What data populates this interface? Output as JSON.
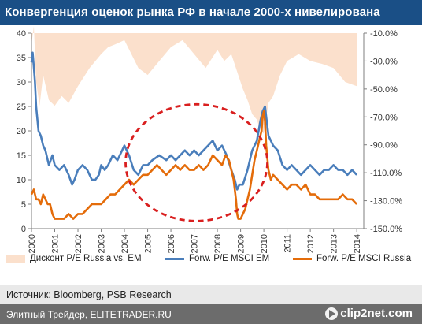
{
  "title": "Конвергенция оценок рынка РФ в начале 2000-х нивелирована",
  "source": "Источник: Bloomberg, PSB Research",
  "footer": {
    "site": "Элитный Трейдер, ELITETRADER.RU",
    "logo": "clip2net.com"
  },
  "colors": {
    "title_bg": "#1a4f86",
    "discount": "#fbe0cc",
    "em": "#4a7ebb",
    "russia": "#e46c0a",
    "circle": "#d91f1f"
  },
  "chart_data": {
    "type": "line",
    "x_ticks": [
      "2000",
      "2001",
      "2002",
      "2003",
      "2004",
      "2005",
      "2006",
      "2007",
      "2008",
      "2009",
      "2010",
      "2011",
      "2012",
      "2013",
      "2014"
    ],
    "y_left": {
      "ticks": [
        "0",
        "5",
        "10",
        "15",
        "20",
        "25",
        "30",
        "35",
        "40"
      ],
      "range": [
        0,
        40
      ]
    },
    "y_right": {
      "ticks": [
        "-150.0%",
        "-130.0%",
        "-110.0%",
        "-90.0%",
        "-70.0%",
        "-50.0%",
        "-30.0%",
        "-10.0%"
      ],
      "range": [
        -150,
        -10
      ]
    },
    "series": [
      {
        "name": "Дисконт P/E Russia vs. EM",
        "axis": "right",
        "kind": "area",
        "x": [
          2000.0,
          2000.1,
          2000.2,
          2000.35,
          2000.5,
          2000.75,
          2001.0,
          2001.3,
          2001.6,
          2002.0,
          2002.5,
          2003.0,
          2003.3,
          2003.6,
          2004.0,
          2004.3,
          2004.6,
          2005.0,
          2005.5,
          2006.0,
          2006.5,
          2007.0,
          2007.5,
          2008.0,
          2008.3,
          2008.6,
          2008.9,
          2009.1,
          2009.3,
          2009.5,
          2009.7,
          2009.85,
          2010.0,
          2010.2,
          2010.4,
          2010.7,
          2011.0,
          2011.5,
          2012.0,
          2012.5,
          2013.0,
          2013.5,
          2014.0
        ],
        "values": [
          -18,
          -5,
          -45,
          -62,
          -40,
          -58,
          -62,
          -55,
          -60,
          -48,
          -35,
          -25,
          -20,
          -18,
          -15,
          -25,
          -35,
          -40,
          -30,
          -20,
          -15,
          -25,
          -35,
          -22,
          -30,
          -25,
          -40,
          -50,
          -58,
          -68,
          -72,
          -80,
          -82,
          -60,
          -55,
          -40,
          -30,
          -25,
          -30,
          -32,
          -35,
          -45,
          -48
        ]
      },
      {
        "name": "Forw. P/E MSCI EM",
        "axis": "left",
        "x": [
          2000.0,
          2000.05,
          2000.1,
          2000.15,
          2000.2,
          2000.3,
          2000.4,
          2000.5,
          2000.6,
          2000.75,
          2000.9,
          2001.0,
          2001.2,
          2001.4,
          2001.6,
          2001.75,
          2001.85,
          2002.0,
          2002.2,
          2002.4,
          2002.6,
          2002.75,
          2002.9,
          2003.0,
          2003.15,
          2003.3,
          2003.5,
          2003.7,
          2003.9,
          2004.0,
          2004.2,
          2004.4,
          2004.6,
          2004.8,
          2005.0,
          2005.2,
          2005.5,
          2005.8,
          2006.0,
          2006.2,
          2006.4,
          2006.6,
          2006.8,
          2007.0,
          2007.2,
          2007.4,
          2007.6,
          2007.8,
          2008.0,
          2008.2,
          2008.4,
          2008.6,
          2008.75,
          2008.85,
          2008.95,
          2009.1,
          2009.3,
          2009.5,
          2009.7,
          2009.85,
          2009.95,
          2010.05,
          2010.2,
          2010.4,
          2010.6,
          2010.8,
          2011.0,
          2011.2,
          2011.4,
          2011.6,
          2011.8,
          2012.0,
          2012.2,
          2012.4,
          2012.6,
          2012.8,
          2013.0,
          2013.2,
          2013.4,
          2013.6,
          2013.8,
          2014.0
        ],
        "values": [
          34,
          36,
          33,
          30,
          25,
          20,
          19,
          17,
          16,
          13,
          15,
          13,
          12,
          13,
          11,
          9,
          10,
          12,
          13,
          12,
          10,
          10,
          11,
          13,
          12,
          13,
          15,
          14,
          16,
          17,
          15,
          12,
          11,
          13,
          13,
          14,
          15,
          14,
          15,
          14,
          15,
          16,
          15,
          16,
          15,
          16,
          17,
          18,
          16,
          17,
          15,
          12,
          10,
          8,
          9,
          9,
          12,
          16,
          18,
          22,
          24,
          25,
          19,
          17,
          16,
          13,
          12,
          13,
          12,
          11,
          12,
          13,
          12,
          11,
          12,
          12,
          13,
          12,
          12,
          11,
          12,
          11
        ]
      },
      {
        "name": "Forw. P/E MSCI Russia",
        "axis": "left",
        "x": [
          2000.0,
          2000.1,
          2000.2,
          2000.3,
          2000.4,
          2000.5,
          2000.6,
          2000.7,
          2000.8,
          2000.9,
          2001.0,
          2001.2,
          2001.4,
          2001.6,
          2001.8,
          2002.0,
          2002.2,
          2002.4,
          2002.6,
          2002.8,
          2003.0,
          2003.2,
          2003.4,
          2003.6,
          2003.8,
          2004.0,
          2004.2,
          2004.4,
          2004.6,
          2004.8,
          2005.0,
          2005.2,
          2005.4,
          2005.6,
          2005.8,
          2006.0,
          2006.2,
          2006.4,
          2006.6,
          2006.8,
          2007.0,
          2007.2,
          2007.4,
          2007.6,
          2007.8,
          2008.0,
          2008.2,
          2008.35,
          2008.5,
          2008.6,
          2008.7,
          2008.8,
          2008.85,
          2008.9,
          2009.0,
          2009.1,
          2009.2,
          2009.3,
          2009.4,
          2009.5,
          2009.6,
          2009.7,
          2009.8,
          2009.9,
          2009.95,
          2010.0,
          2010.05,
          2010.1,
          2010.2,
          2010.3,
          2010.4,
          2010.6,
          2010.8,
          2011.0,
          2011.2,
          2011.4,
          2011.6,
          2011.8,
          2012.0,
          2012.2,
          2012.4,
          2012.6,
          2012.8,
          2013.0,
          2013.2,
          2013.4,
          2013.6,
          2013.8,
          2014.0
        ],
        "values": [
          7,
          8,
          6,
          6,
          5,
          7,
          6,
          5,
          5,
          3,
          2,
          2,
          2,
          3,
          2,
          3,
          3,
          4,
          5,
          5,
          5,
          6,
          7,
          7,
          8,
          9,
          10,
          9,
          10,
          11,
          11,
          12,
          13,
          12,
          11,
          12,
          13,
          12,
          13,
          12,
          12,
          13,
          12,
          13,
          15,
          14,
          13,
          15,
          14,
          12,
          10,
          6,
          3,
          2,
          2,
          3,
          4,
          6,
          8,
          11,
          14,
          16,
          18,
          20,
          23,
          24,
          22,
          17,
          12,
          10,
          11,
          10,
          9,
          8,
          9,
          9,
          8,
          9,
          7,
          7,
          6,
          6,
          6,
          6,
          6,
          7,
          6,
          6,
          5
        ]
      }
    ],
    "legend_position": "bottom",
    "grid": false
  }
}
